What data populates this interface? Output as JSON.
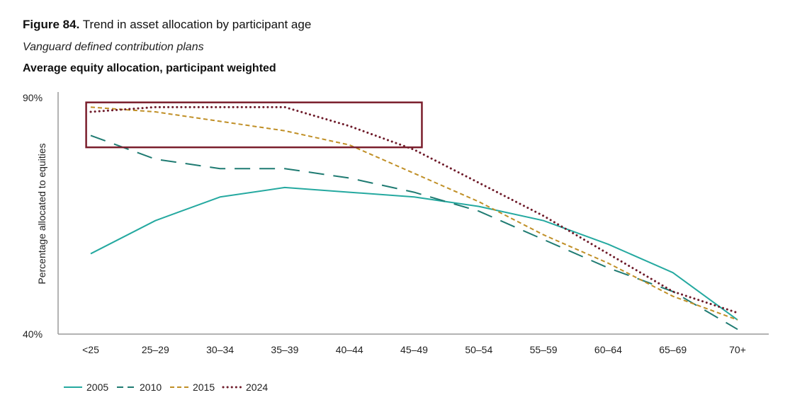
{
  "figure": {
    "label": "Figure 84.",
    "title": "Trend in asset allocation by participant age",
    "subtitle": "Vanguard defined contribution plans",
    "measure": "Average equity allocation, participant weighted"
  },
  "chart_data": {
    "type": "line",
    "xlabel": "",
    "ylabel": "Percentage allocated to equities",
    "categories": [
      "<25",
      "25–29",
      "30–34",
      "35–39",
      "40–44",
      "45–49",
      "50–54",
      "55–59",
      "60–64",
      "65–69",
      "70+"
    ],
    "ylim": [
      40,
      90
    ],
    "yticks": [
      "90%",
      "40%"
    ],
    "grid": false,
    "legend_position": "bottom-left",
    "series": [
      {
        "name": "2005",
        "style": "solid",
        "color": "#25a9a0",
        "values": [
          57,
          64,
          69,
          71,
          70,
          69,
          67,
          64,
          59,
          53,
          43
        ]
      },
      {
        "name": "2010",
        "style": "dashed",
        "color": "#1f7b72",
        "values": [
          82,
          77,
          75,
          75,
          73,
          70,
          66,
          60,
          54,
          49,
          41
        ]
      },
      {
        "name": "2015",
        "style": "dashed-fine",
        "color": "#c08f26",
        "values": [
          88,
          87,
          85,
          83,
          80,
          74,
          68,
          61,
          55,
          48,
          43
        ]
      },
      {
        "name": "2024",
        "style": "dotted",
        "color": "#6e1b2a",
        "values": [
          87,
          88,
          88,
          88,
          84,
          79,
          72,
          65,
          57,
          49,
          44.5
        ]
      }
    ],
    "annotation": {
      "type": "rectangle",
      "color": "#7a1e2c",
      "x_from": "<25",
      "x_to": "45–49",
      "y_from": 79.5,
      "y_to": 89
    }
  }
}
